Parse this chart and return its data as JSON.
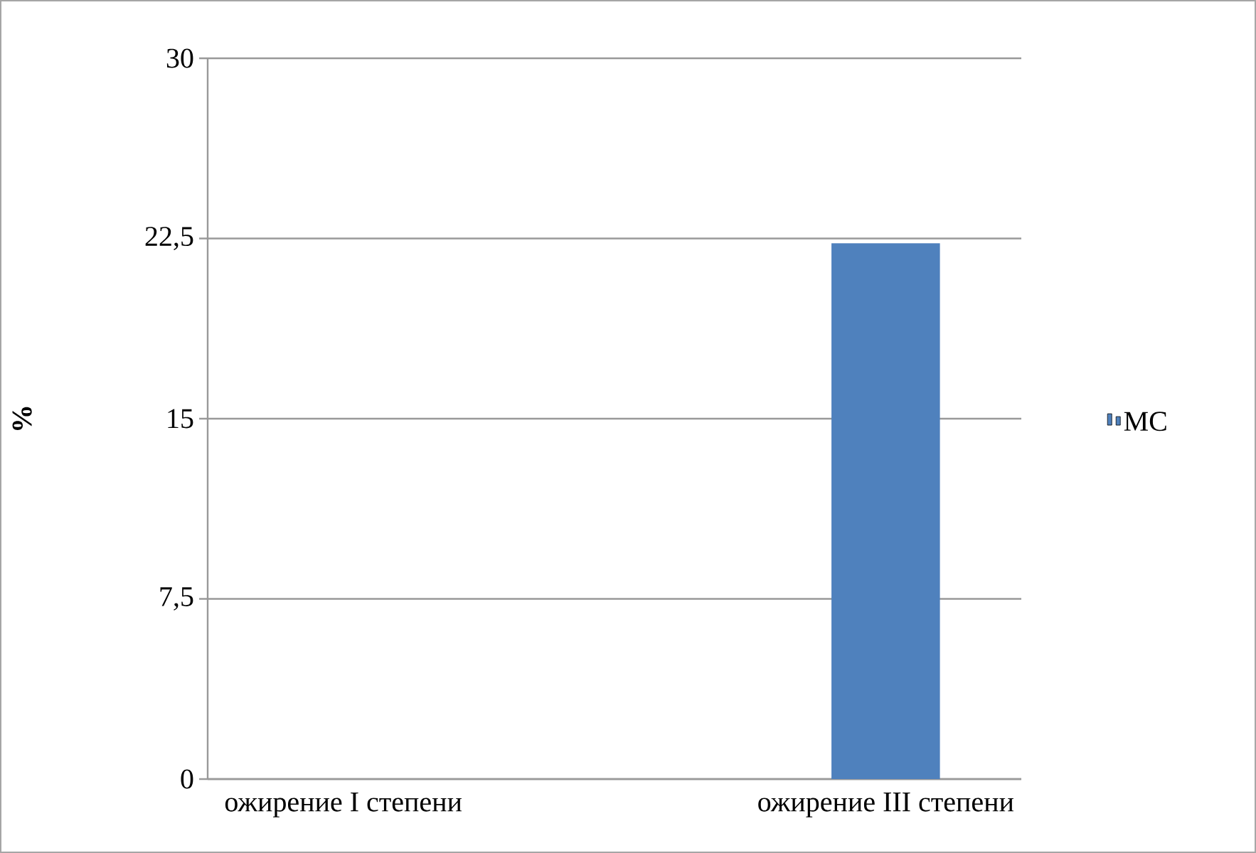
{
  "chart_data": {
    "type": "bar",
    "ylabel": "%",
    "categories": [
      "ожирение I степени",
      null,
      "ожирение III степени"
    ],
    "series": [
      {
        "name": "МС",
        "color": "#4f81bd",
        "values": [
          null,
          null,
          22.3
        ]
      }
    ],
    "ylim": [
      0,
      30
    ],
    "yticks": [
      0,
      {
        "value": 7.5,
        "label": "7,5"
      },
      15,
      {
        "value": 22.5,
        "label": "22,5"
      },
      30
    ],
    "grid": "y",
    "legend": "right"
  }
}
